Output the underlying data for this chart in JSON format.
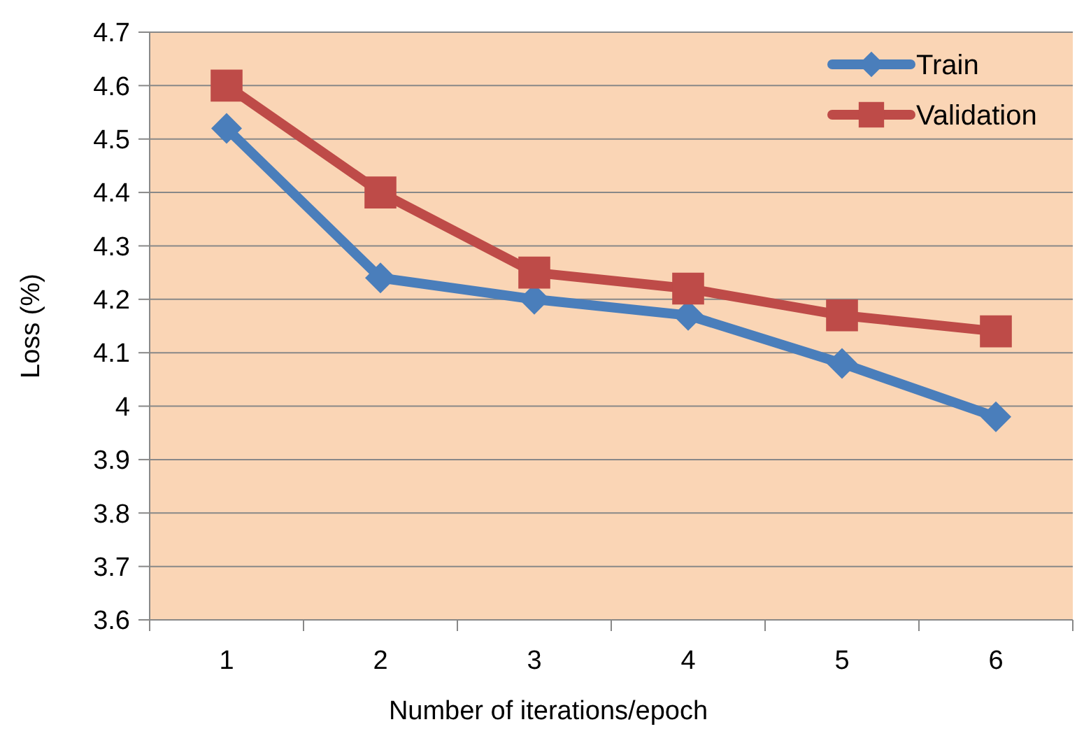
{
  "chart_data": {
    "type": "line",
    "xlabel": "Number of iterations/epoch",
    "ylabel": "Loss (%)",
    "categories": [
      "1",
      "2",
      "3",
      "4",
      "5",
      "6"
    ],
    "series": [
      {
        "name": "Train",
        "color": "#4a7ebb",
        "marker": "diamond",
        "values": [
          4.52,
          4.24,
          4.2,
          4.17,
          4.08,
          3.98
        ]
      },
      {
        "name": "Validation",
        "color": "#be4b48",
        "marker": "square",
        "values": [
          4.6,
          4.4,
          4.25,
          4.22,
          4.17,
          4.14
        ]
      }
    ],
    "ylim": [
      3.6,
      4.7
    ],
    "yticks": [
      3.6,
      3.7,
      3.8,
      3.9,
      4,
      4.1,
      4.2,
      4.3,
      4.4,
      4.5,
      4.6,
      4.7
    ],
    "grid": "y",
    "legend": "top right"
  }
}
